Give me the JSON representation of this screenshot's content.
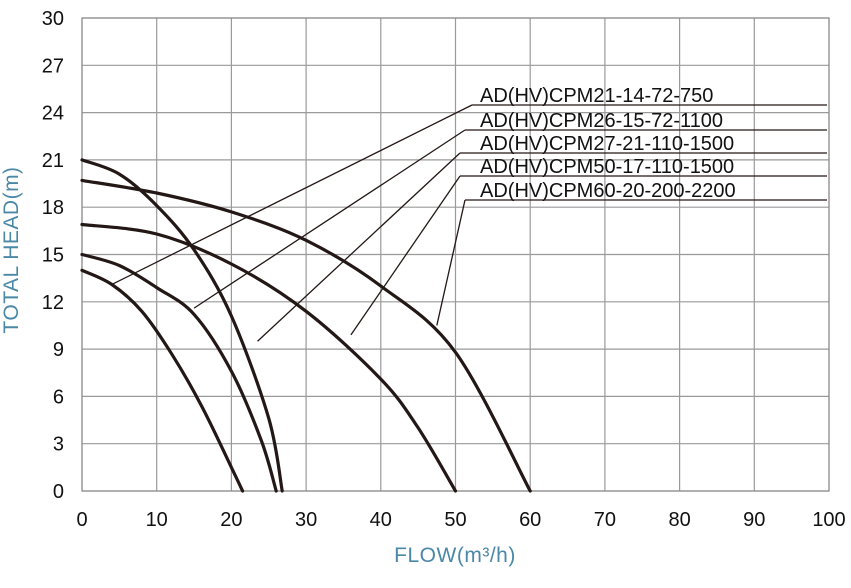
{
  "chart_data": {
    "type": "line",
    "xlabel": "FLOW(m³/h)",
    "ylabel": "TOTAL HEAD(m)",
    "xlim": [
      0,
      100
    ],
    "ylim": [
      0,
      30
    ],
    "x_ticks": [
      "0",
      "10",
      "20",
      "30",
      "40",
      "50",
      "60",
      "70",
      "80",
      "90",
      "100"
    ],
    "y_ticks": [
      "0",
      "3",
      "6",
      "9",
      "12",
      "15",
      "18",
      "21",
      "24",
      "27",
      "30"
    ],
    "grid": true,
    "legend_placement": "top-right, with leader lines to curves",
    "series": [
      {
        "name": "AD(HV)CPM21-14-72-750",
        "x": [
          0,
          4,
          8,
          12,
          16,
          20,
          21.5
        ],
        "y": [
          14.0,
          13.1,
          11.4,
          8.7,
          5.4,
          1.5,
          0
        ]
      },
      {
        "name": "AD(HV)CPM26-15-72-1100",
        "x": [
          0,
          5,
          10,
          15,
          20,
          24,
          26
        ],
        "y": [
          15.0,
          14.3,
          12.9,
          11.2,
          7.6,
          3.2,
          0
        ]
      },
      {
        "name": "AD(HV)CPM27-21-110-1500",
        "x": [
          0,
          5,
          10,
          15,
          20,
          25,
          26.8
        ],
        "y": [
          21.0,
          20.1,
          18.1,
          15.3,
          11.1,
          4.6,
          0
        ]
      },
      {
        "name": "AD(HV)CPM50-17-110-1500",
        "x": [
          0,
          10,
          20,
          30,
          40,
          45,
          50
        ],
        "y": [
          16.9,
          16.3,
          14.4,
          11.4,
          7.1,
          4.0,
          0
        ]
      },
      {
        "name": "AD(HV)CPM60-20-200-2200",
        "x": [
          0,
          10,
          20,
          30,
          40,
          50,
          60
        ],
        "y": [
          19.7,
          18.9,
          17.7,
          15.9,
          13.0,
          8.8,
          0
        ]
      }
    ],
    "leaders": [
      {
        "series": 0,
        "at": [
          4,
          13.1
        ]
      },
      {
        "series": 1,
        "at": [
          15,
          11.6
        ]
      },
      {
        "series": 2,
        "at": [
          23.5,
          9.5
        ]
      },
      {
        "series": 3,
        "at": [
          36,
          9.9
        ]
      },
      {
        "series": 4,
        "at": [
          47.5,
          10.5
        ]
      }
    ],
    "colors": {
      "curve": "#231815",
      "grid": "#9a9a9a",
      "tick_text": "#111111",
      "axis_title": "#4b88a8"
    }
  }
}
